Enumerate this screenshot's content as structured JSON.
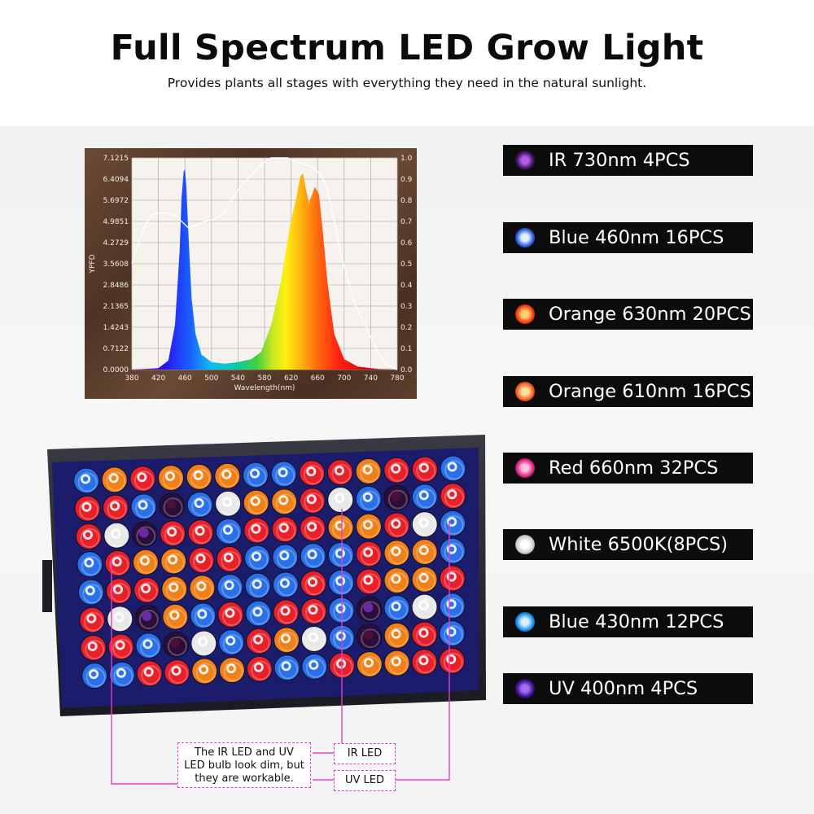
{
  "title": "Full Spectrum LED Grow Light",
  "subtitle": "Provides plants all stages with everything they need in the natural sunlight.",
  "chart_data": {
    "type": "area",
    "xlabel": "Wavelength(nm)",
    "ylabel": "YPFD",
    "x_ticks": [
      "380",
      "420",
      "460",
      "500",
      "540",
      "580",
      "620",
      "660",
      "700",
      "740",
      "780"
    ],
    "y_left_ticks": [
      "7.1215",
      "6.4094",
      "5.6972",
      "4.9851",
      "4.2729",
      "3.5608",
      "2.8486",
      "2.1365",
      "1.4243",
      "0.7122",
      "0.0000"
    ],
    "y_right_ticks": [
      "1.0",
      "0.9",
      "0.8",
      "0.7",
      "0.6",
      "0.5",
      "0.4",
      "0.3",
      "0.2",
      "0.1",
      "0.0"
    ],
    "xlim": [
      380,
      780
    ],
    "ylim_left": [
      0,
      7.1215
    ],
    "ylim_right": [
      0,
      1.0
    ],
    "grid": true,
    "series": [
      {
        "role": "spectrum-fill",
        "points": [
          [
            380,
            0
          ],
          [
            400,
            0.02
          ],
          [
            420,
            0.05
          ],
          [
            435,
            0.3
          ],
          [
            445,
            1.5
          ],
          [
            452,
            4.0
          ],
          [
            455,
            5.8
          ],
          [
            458,
            6.65
          ],
          [
            460,
            6.75
          ],
          [
            462,
            6.2
          ],
          [
            466,
            4.2
          ],
          [
            470,
            2.4
          ],
          [
            476,
            1.2
          ],
          [
            485,
            0.5
          ],
          [
            500,
            0.25
          ],
          [
            520,
            0.2
          ],
          [
            540,
            0.25
          ],
          [
            560,
            0.35
          ],
          [
            575,
            0.6
          ],
          [
            590,
            1.5
          ],
          [
            605,
            3.0
          ],
          [
            618,
            4.8
          ],
          [
            628,
            5.8
          ],
          [
            634,
            6.5
          ],
          [
            638,
            6.6
          ],
          [
            642,
            6.1
          ],
          [
            647,
            5.6
          ],
          [
            651,
            5.85
          ],
          [
            656,
            6.15
          ],
          [
            662,
            5.9
          ],
          [
            668,
            4.6
          ],
          [
            675,
            2.9
          ],
          [
            685,
            1.2
          ],
          [
            700,
            0.35
          ],
          [
            720,
            0.1
          ],
          [
            750,
            0.02
          ],
          [
            780,
            0
          ]
        ]
      },
      {
        "role": "relative-response-line",
        "points": [
          [
            380,
            0.5
          ],
          [
            390,
            0.6
          ],
          [
            400,
            0.68
          ],
          [
            410,
            0.73
          ],
          [
            420,
            0.74
          ],
          [
            435,
            0.74
          ],
          [
            445,
            0.73
          ],
          [
            455,
            0.7
          ],
          [
            465,
            0.67
          ],
          [
            475,
            0.68
          ],
          [
            490,
            0.7
          ],
          [
            505,
            0.71
          ],
          [
            520,
            0.74
          ],
          [
            530,
            0.8
          ],
          [
            545,
            0.87
          ],
          [
            560,
            0.92
          ],
          [
            575,
            0.97
          ],
          [
            590,
            1.0
          ],
          [
            615,
            1.0
          ],
          [
            630,
            0.98
          ],
          [
            650,
            0.96
          ],
          [
            665,
            0.92
          ],
          [
            675,
            0.85
          ],
          [
            685,
            0.7
          ],
          [
            695,
            0.55
          ],
          [
            705,
            0.43
          ],
          [
            715,
            0.32
          ],
          [
            725,
            0.25
          ],
          [
            735,
            0.19
          ],
          [
            745,
            0.12
          ],
          [
            755,
            0.06
          ],
          [
            765,
            0.02
          ],
          [
            780,
            0
          ]
        ]
      }
    ]
  },
  "legend": [
    {
      "label": "IR 730nm 4PCS",
      "color": "#3a1060",
      "glow": "#b060e0"
    },
    {
      "label": "Blue 460nm 16PCS",
      "color": "#2a60e0",
      "glow": "#e8f0ff"
    },
    {
      "label": "Orange 630nm 20PCS",
      "color": "#ff3a10",
      "glow": "#ffd070"
    },
    {
      "label": "Orange 610nm 16PCS",
      "color": "#ff5a20",
      "glow": "#ffe0a0"
    },
    {
      "label": "Red 660nm 32PCS",
      "color": "#e0207a",
      "glow": "#ffc0e0"
    },
    {
      "label": "White 6500K(8PCS)",
      "color": "#d0d0d0",
      "glow": "#ffffff"
    },
    {
      "label": "Blue 430nm 12PCS",
      "color": "#1890f0",
      "glow": "#d8f0ff"
    },
    {
      "label": "UV 400nm 4PCS",
      "color": "#3a1090",
      "glow": "#a070f0"
    }
  ],
  "callouts": {
    "note": "The IR LED and UV LED bulb  look dim, but they are workable.",
    "ir": "IR LED",
    "uv": "UV LED"
  },
  "colors": {
    "red": "#e8202a",
    "orange": "#f08018",
    "blue": "#2a70e8",
    "white": "#e8e8e8",
    "uv": "#6a2aa8",
    "ir": "#4a1038",
    "callout_line": "#e040c8"
  }
}
